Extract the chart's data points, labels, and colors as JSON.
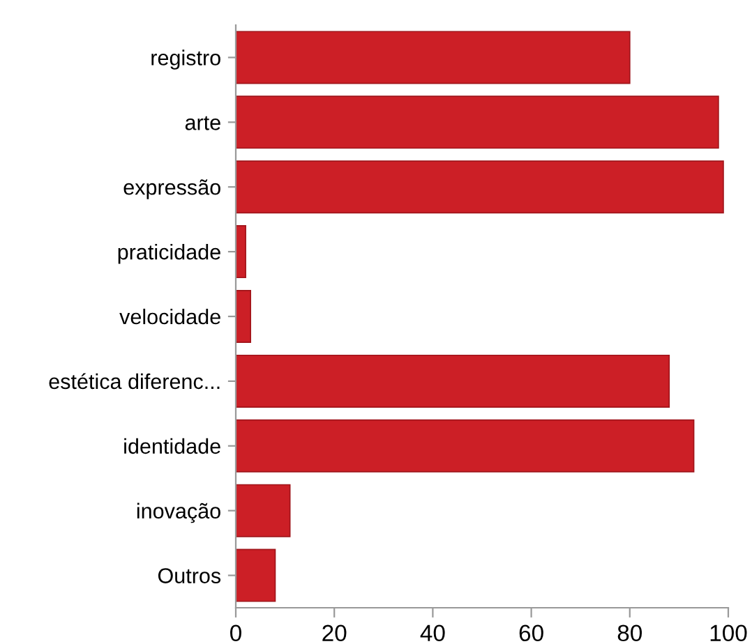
{
  "chart_data": {
    "type": "bar",
    "orientation": "horizontal",
    "categories": [
      "registro",
      "arte",
      "expressão",
      "praticidade",
      "velocidade",
      "estética diferenc...",
      "identidade",
      "inovação",
      "Outros"
    ],
    "values": [
      80,
      98,
      99,
      2,
      3,
      88,
      93,
      11,
      8
    ],
    "color": "#cc1f26",
    "xlim": [
      0,
      100
    ],
    "xticks": [
      0,
      20,
      40,
      60,
      80,
      100
    ],
    "grid": false
  }
}
